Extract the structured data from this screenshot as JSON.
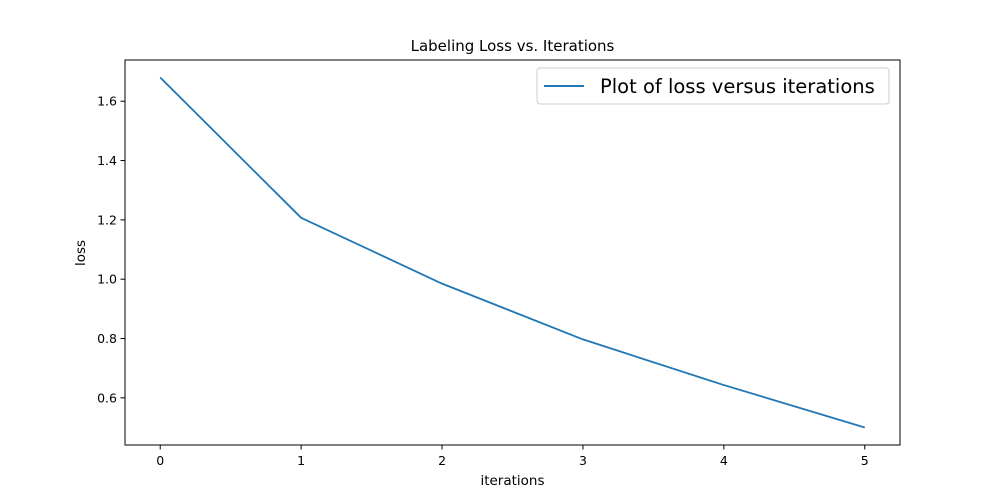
{
  "chart_data": {
    "type": "line",
    "title": "Labeling Loss vs. Iterations",
    "xlabel": "iterations",
    "ylabel": "loss",
    "x": [
      0,
      1,
      2,
      3,
      4,
      5
    ],
    "series": [
      {
        "name": "Plot of loss versus iterations",
        "values": [
          1.68,
          1.207,
          0.985,
          0.797,
          0.643,
          0.5
        ],
        "color": "#1f77b4"
      }
    ],
    "xlim": [
      -0.25,
      5.25
    ],
    "ylim": [
      0.441,
      1.739
    ],
    "xticks": [
      0,
      1,
      2,
      3,
      4,
      5
    ],
    "xtick_labels": [
      "0",
      "1",
      "2",
      "3",
      "4",
      "5"
    ],
    "yticks": [
      0.6,
      0.8,
      1.0,
      1.2,
      1.4,
      1.6
    ],
    "ytick_labels": [
      "0.6",
      "0.8",
      "1.0",
      "1.2",
      "1.4",
      "1.6"
    ],
    "grid": false,
    "legend_position": "top-right"
  }
}
